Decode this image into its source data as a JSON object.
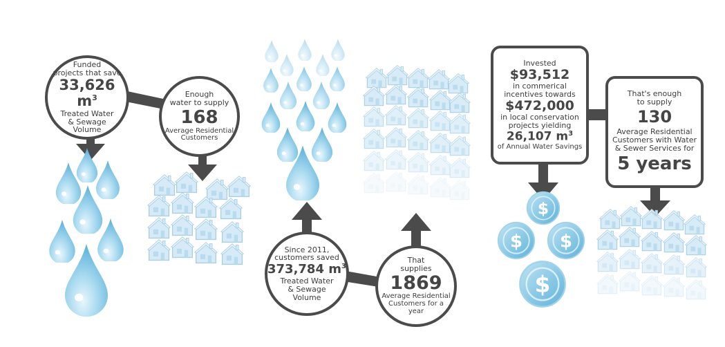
{
  "panel1": {
    "circle1": {
      "line1": "Funded",
      "line2": "projects that save",
      "value": "33,626 m",
      "value_sup": "3",
      "line3": "Treated Water",
      "line4": "& Sewage",
      "line5": "Volume"
    },
    "circle2": {
      "line1": "Enough",
      "line2": "water to supply",
      "value": "168",
      "line3": "Average Residential",
      "line4": "Customers"
    }
  },
  "panel2": {
    "circle1": {
      "line1": "Since 2011,",
      "line2": "customers saved",
      "value": "373,784 m",
      "value_sup": "3",
      "line3": "Treated Water",
      "line4": "& Sewage",
      "line5": "Volume"
    },
    "circle2": {
      "line1": "That",
      "line2": "supplies",
      "value": "1869",
      "line3": "Average Residential",
      "line4": "Customers for a",
      "line5": "year"
    }
  },
  "panel3": {
    "box1": {
      "line1": "Invested",
      "value1": "$93,512",
      "line2": "in commerical",
      "line3": "incentives towards",
      "value2": "$472,000",
      "line4": "in local conservation",
      "line5": "projects yielding",
      "value3": "26,107 m",
      "value3_sup": "3",
      "line6": "of Annual Water Savings"
    },
    "box2": {
      "line1": "That's enough",
      "line2": "to supply",
      "value1": "130",
      "line3": "Average Residential",
      "line4": "Customers with Water",
      "line5": "& Sewer Services for",
      "value2": "5 years"
    }
  },
  "icons": {
    "drop": "water-drop-icon",
    "house": "house-icon",
    "coin": "dollar-coin-icon",
    "arrow": "arrow-icon"
  },
  "colors": {
    "connector": "#4b4b4b",
    "drop_light": "#d9f0fa",
    "drop_dark": "#6bb8dc",
    "house": "#cfe6f4",
    "coin": "#8ccbe6"
  }
}
